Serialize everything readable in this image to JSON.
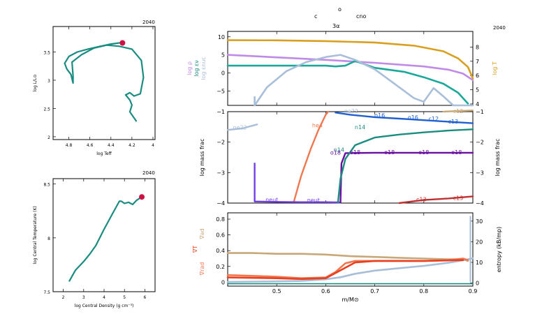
{
  "header": {
    "line1_left": "c",
    "line1_mid": "o",
    "line1_right": "cno",
    "line2": "3α",
    "model_left_top": "2040",
    "model_left_bottom": "2040",
    "model_right": "2040"
  },
  "colors": {
    "teal": "#1a8c80",
    "marker": "#cc1144",
    "lilac": "#c08ae8",
    "blue_grey": "#a9bed8",
    "gold": "#d9a020",
    "salmon": "#f07850",
    "violet": "#7040e0",
    "purple": "#6a10a0",
    "blue": "#2060d0",
    "red": "#c03030",
    "tan": "#c8a878",
    "orange_red": "#e84020"
  },
  "chart_data": [
    {
      "id": "hr",
      "type": "line",
      "xlabel": "log Teff",
      "ylabel": "log L/L⊙",
      "xlim": [
        4.95,
        3.98
      ],
      "ylim": [
        1.95,
        3.95
      ],
      "xticks": [
        "4.8",
        "4.6",
        "4.4",
        "4.2",
        "4"
      ],
      "xtick_values": [
        4.8,
        4.6,
        4.4,
        4.2,
        4.0
      ],
      "yticks": [
        "2",
        "2.5",
        "3",
        "3.5"
      ],
      "ytick_values": [
        2,
        2.5,
        3,
        3.5
      ],
      "series": [
        {
          "color": "#1a8c80",
          "x": [
            4.16,
            4.19,
            4.22,
            4.2,
            4.22,
            4.26,
            4.22,
            4.18,
            4.12,
            4.09,
            4.11,
            4.2,
            4.32,
            4.44,
            4.56,
            4.68,
            4.77,
            4.76,
            4.76,
            4.78,
            4.82,
            4.84,
            4.8,
            4.72,
            4.62,
            4.5,
            4.4,
            4.32
          ],
          "y": [
            2.28,
            2.36,
            2.44,
            2.56,
            2.65,
            2.74,
            2.78,
            2.72,
            2.76,
            3.05,
            3.35,
            3.55,
            3.6,
            3.62,
            3.57,
            3.45,
            3.32,
            3.08,
            2.95,
            3.1,
            3.2,
            3.3,
            3.42,
            3.5,
            3.55,
            3.6,
            3.64,
            3.66
          ]
        }
      ],
      "marker": {
        "x": 4.29,
        "y": 3.66
      }
    },
    {
      "id": "center",
      "type": "line",
      "xlabel": "log Central Density (g cm⁻³)",
      "ylabel": "log Central Temperature (K)",
      "xlim": [
        1.5,
        6.5
      ],
      "ylim": [
        7.5,
        8.55
      ],
      "xticks": [
        "2",
        "3",
        "4",
        "5",
        "6"
      ],
      "xtick_values": [
        2,
        3,
        4,
        5,
        6
      ],
      "yticks": [
        "7.5",
        "8",
        "8.5"
      ],
      "ytick_values": [
        7.5,
        8,
        8.5
      ],
      "series": [
        {
          "color": "#1a8c80",
          "x": [
            2.3,
            2.6,
            3.0,
            3.3,
            3.6,
            4.0,
            4.4,
            4.75,
            4.85,
            5.0,
            5.2,
            5.4,
            5.6,
            5.85
          ],
          "y": [
            7.6,
            7.7,
            7.78,
            7.85,
            7.93,
            8.08,
            8.22,
            8.34,
            8.34,
            8.32,
            8.33,
            8.31,
            8.35,
            8.38
          ]
        }
      ],
      "marker": {
        "x": 5.85,
        "y": 8.38
      }
    },
    {
      "id": "structure",
      "type": "line",
      "xlim": [
        0.4,
        0.9
      ],
      "ylim": [
        -9,
        11.5
      ],
      "yticks": [
        "−5",
        "0",
        "5",
        "10"
      ],
      "ytick_values": [
        -5,
        0,
        5,
        10
      ],
      "ylabels_left": [
        "log ρ",
        "log εν",
        "log εnuc"
      ],
      "ylabel_right": "log T",
      "ylim_right": [
        3.9,
        9.1
      ],
      "yticks_right": [
        "4",
        "5",
        "6",
        "7",
        "8"
      ],
      "ytick_values_right": [
        4,
        5,
        6,
        7,
        8
      ],
      "series": [
        {
          "name": "log ρ",
          "color": "#c08ae8",
          "axis": "left",
          "x": [
            0.4,
            0.5,
            0.6,
            0.7,
            0.8,
            0.85,
            0.88,
            0.9
          ],
          "y": [
            5.0,
            4.3,
            3.6,
            2.8,
            1.8,
            0.9,
            -0.2,
            -2.0
          ]
        },
        {
          "name": "log εν",
          "color": "#1aa89a",
          "axis": "left",
          "x": [
            0.4,
            0.5,
            0.6,
            0.62,
            0.64,
            0.66,
            0.7,
            0.76,
            0.8,
            0.84,
            0.87,
            0.88,
            0.89
          ],
          "y": [
            2.0,
            2.0,
            2.0,
            1.8,
            2.0,
            3.3,
            1.4,
            0.3,
            -1.2,
            -3.0,
            -5.5,
            -7.0,
            -8.5
          ]
        },
        {
          "name": "log εnuc",
          "color": "#a9bed8",
          "axis": "left",
          "x": [
            0.455,
            0.48,
            0.52,
            0.56,
            0.6,
            0.63,
            0.66,
            0.7,
            0.73,
            0.76,
            0.78,
            0.8,
            0.82,
            0.84,
            0.86,
            0.88,
            0.9
          ],
          "y": [
            -9.0,
            -4.0,
            0.5,
            3.0,
            4.4,
            5.0,
            3.6,
            1.0,
            -2.0,
            -5.0,
            -7.0,
            -8.0,
            -4.2,
            -6.5,
            -9.0,
            -9.0,
            -9.0
          ]
        },
        {
          "name": "log T",
          "color": "#d9a020",
          "axis": "right",
          "x": [
            0.4,
            0.5,
            0.6,
            0.7,
            0.78,
            0.84,
            0.87,
            0.89,
            0.9
          ],
          "y": [
            8.48,
            8.47,
            8.42,
            8.32,
            8.1,
            7.7,
            7.2,
            6.6,
            5.8
          ]
        }
      ],
      "spike": {
        "x": 0.455,
        "y1": -9.0,
        "y2": -6.5
      }
    },
    {
      "id": "abundance",
      "type": "line",
      "xlim": [
        0.4,
        0.9
      ],
      "ylim": [
        -4,
        -1
      ],
      "ylabel": "log mass frac",
      "ylabel_right": "log mass frac",
      "yticks": [
        "−4",
        "−3",
        "−2",
        "−1"
      ],
      "ytick_values": [
        -4,
        -3,
        -2,
        -1
      ],
      "series": [
        {
          "color": "#a9bed8",
          "x": [
            0.4,
            0.43,
            0.46
          ],
          "y": [
            -1.6,
            -1.55,
            -1.42
          ]
        },
        {
          "color": "#f07850",
          "x": [
            0.535,
            0.55,
            0.57,
            0.585,
            0.6,
            0.605
          ],
          "y": [
            -3.95,
            -3.1,
            -2.2,
            -1.6,
            -1.1,
            -1.0
          ]
        },
        {
          "color": "#7040e0",
          "x": [
            0.455,
            0.455,
            0.46,
            0.5,
            0.55,
            0.6,
            0.63
          ],
          "y": [
            -2.7,
            -3.95,
            -3.95,
            -3.96,
            -3.97,
            -3.97,
            -3.98
          ]
        },
        {
          "color": "#6a10a0",
          "x": [
            0.63,
            0.632,
            0.64,
            0.7,
            0.8,
            0.9
          ],
          "y": [
            -3.98,
            -2.7,
            -2.36,
            -2.35,
            -2.35,
            -2.35
          ]
        },
        {
          "color": "#1a8c80",
          "x": [
            0.625,
            0.63,
            0.64,
            0.66,
            0.7,
            0.75,
            0.8,
            0.85,
            0.9
          ],
          "y": [
            -3.98,
            -3.2,
            -2.55,
            -2.1,
            -1.85,
            -1.75,
            -1.68,
            -1.62,
            -1.58
          ]
        },
        {
          "color": "#2060d0",
          "x": [
            0.62,
            0.65,
            0.7,
            0.75,
            0.8,
            0.85,
            0.9
          ],
          "y": [
            -1.03,
            -1.1,
            -1.18,
            -1.23,
            -1.28,
            -1.33,
            -1.38
          ]
        },
        {
          "color": "#c03030",
          "x": [
            0.75,
            0.8,
            0.85,
            0.9
          ],
          "y": [
            -4.0,
            -3.9,
            -3.85,
            -3.78
          ]
        },
        {
          "color": "#c8a878",
          "x": [
            0.84,
            0.87,
            0.9
          ],
          "y": [
            -1.0,
            -0.98,
            -0.96
          ]
        }
      ],
      "labels": [
        {
          "text": "ne22",
          "x": 0.425,
          "y": -1.52,
          "color": "#a9bed8"
        },
        {
          "text": "he4",
          "x": 0.583,
          "y": -1.45,
          "color": "#f07850"
        },
        {
          "text": "neut",
          "x": 0.49,
          "y": -3.88,
          "color": "#7040e0"
        },
        {
          "text": "neut",
          "x": 0.575,
          "y": -3.9,
          "color": "#7040e0"
        },
        {
          "text": "n14",
          "x": 0.67,
          "y": -1.5,
          "color": "#1a8c80"
        },
        {
          "text": "n14",
          "x": 0.627,
          "y": -2.25,
          "color": "#1a8c80"
        },
        {
          "text": "o18",
          "x": 0.66,
          "y": -2.33,
          "color": "#6a10a0"
        },
        {
          "text": "o18",
          "x": 0.62,
          "y": -2.34,
          "color": "#6a10a0"
        },
        {
          "text": "o18",
          "x": 0.73,
          "y": -2.33,
          "color": "#6a10a0"
        },
        {
          "text": "o18",
          "x": 0.8,
          "y": -2.33,
          "color": "#6a10a0"
        },
        {
          "text": "o18",
          "x": 0.867,
          "y": -2.33,
          "color": "#6a10a0"
        },
        {
          "text": "ne22",
          "x": 0.652,
          "y": -0.98,
          "color": "#a9bed8"
        },
        {
          "text": "o16",
          "x": 0.71,
          "y": -1.12,
          "color": "#2060d0"
        },
        {
          "text": "o16",
          "x": 0.778,
          "y": -1.18,
          "color": "#2060d0"
        },
        {
          "text": "c12",
          "x": 0.82,
          "y": -1.23,
          "color": "#2060d0"
        },
        {
          "text": "c13",
          "x": 0.86,
          "y": -1.32,
          "color": "#2060d0"
        },
        {
          "text": "c12",
          "x": 0.87,
          "y": -0.98,
          "color": "#c8a878"
        },
        {
          "text": "c13",
          "x": 0.795,
          "y": -3.87,
          "color": "#c03030"
        },
        {
          "text": "c13",
          "x": 0.87,
          "y": -3.83,
          "color": "#c03030"
        }
      ]
    },
    {
      "id": "gradients",
      "type": "line",
      "xlim": [
        0.4,
        0.9
      ],
      "xlabel": "m/M⊙",
      "xticks": [
        "0.5",
        "0.6",
        "0.7",
        "0.8",
        "0.9"
      ],
      "xtick_values": [
        0.5,
        0.6,
        0.7,
        0.8,
        0.9
      ],
      "ylim": [
        -0.05,
        0.88
      ],
      "yticks": [
        "0",
        "0.2",
        "0.4",
        "0.6",
        "0.8"
      ],
      "ytick_values": [
        0,
        0.2,
        0.4,
        0.6,
        0.8
      ],
      "ylabel_right": "entropy (kB/mp)",
      "ylim_right": [
        -1.5,
        34
      ],
      "yticks_right": [
        "0",
        "10",
        "20",
        "30"
      ],
      "ytick_values_right": [
        0,
        10,
        20,
        30
      ],
      "ylabels_left": [
        "∇ad",
        "∇T",
        "∇rad"
      ],
      "series": [
        {
          "name": "∇ad",
          "color": "#c8a878",
          "x": [
            0.4,
            0.45,
            0.5,
            0.55,
            0.6,
            0.65,
            0.7,
            0.75,
            0.8,
            0.85,
            0.88,
            0.89
          ],
          "y": [
            0.37,
            0.37,
            0.36,
            0.36,
            0.35,
            0.33,
            0.32,
            0.31,
            0.3,
            0.29,
            0.29,
            0.27
          ]
        },
        {
          "name": "entropy",
          "color": "#a9bed8",
          "axis": "right",
          "x": [
            0.4,
            0.5,
            0.55,
            0.6,
            0.63,
            0.66,
            0.7,
            0.75,
            0.8,
            0.85,
            0.88,
            0.9
          ],
          "y": [
            0.5,
            0.8,
            1.0,
            1.8,
            2.8,
            4.5,
            6.0,
            7.2,
            8.3,
            9.8,
            11.0,
            12.0
          ]
        },
        {
          "name": "∇rad",
          "color": "#f07850",
          "x": [
            0.4,
            0.45,
            0.5,
            0.55,
            0.6,
            0.62,
            0.64,
            0.66,
            0.7,
            0.75,
            0.8,
            0.85,
            0.88,
            0.89
          ],
          "y": [
            0.09,
            0.08,
            0.07,
            0.05,
            0.06,
            0.13,
            0.24,
            0.27,
            0.27,
            0.27,
            0.27,
            0.28,
            0.3,
            0.28
          ]
        },
        {
          "name": "∇T",
          "color": "#e84020",
          "x": [
            0.4,
            0.5,
            0.55,
            0.6,
            0.63,
            0.66,
            0.7,
            0.8,
            0.88
          ],
          "y": [
            0.06,
            0.05,
            0.04,
            0.05,
            0.15,
            0.25,
            0.27,
            0.27,
            0.28
          ]
        },
        {
          "name": "baseline",
          "color": "#1a8c80",
          "x": [
            0.4,
            0.9
          ],
          "y": [
            -0.02,
            -0.02
          ]
        }
      ],
      "edge_spike": {
        "x": 0.895,
        "y1": 0.0,
        "y2": 0.84,
        "color": "#a9bed8"
      }
    }
  ]
}
